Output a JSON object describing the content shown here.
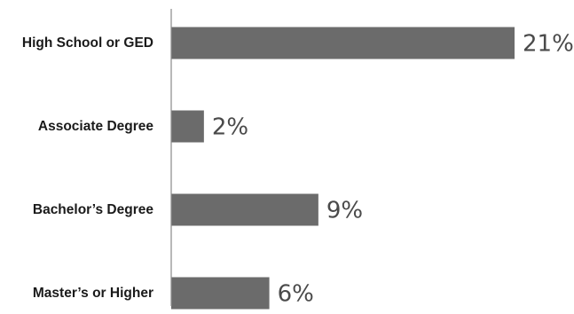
{
  "chart_data": {
    "type": "bar",
    "orientation": "horizontal",
    "categories": [
      "High School or GED",
      "Associate Degree",
      "Bachelor’s Degree",
      "Master’s or Higher"
    ],
    "values": [
      21,
      2,
      9,
      6
    ],
    "value_labels": [
      "21%",
      "2%",
      "9%",
      "6%"
    ],
    "unit": "%",
    "title": "",
    "xlabel": "",
    "ylabel": "",
    "xlim": [
      0,
      21
    ],
    "grid": false,
    "legend": "none",
    "bar_color": "#6b6b6b",
    "value_label_color": "#4a4a4a",
    "category_label_color": "#1a1a1a",
    "axis_color": "#8a8a8a"
  }
}
